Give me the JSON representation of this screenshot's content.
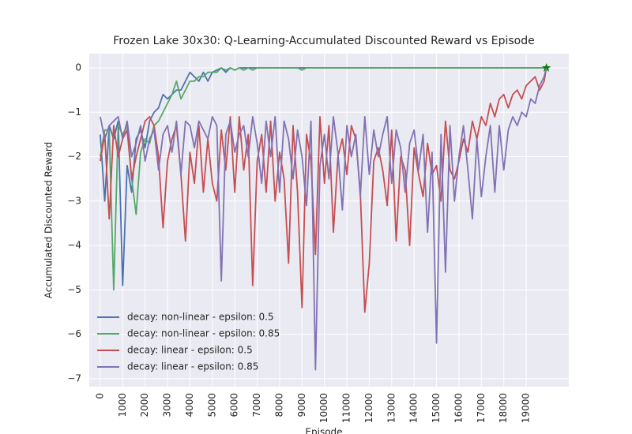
{
  "chart_data": {
    "type": "line",
    "title": "Frozen Lake 30x30: Q-Learning-Accumulated Discounted Reward vs Episode",
    "x_label": "Episode",
    "y_label": "Accumulated Discounted Reward",
    "x": [
      0,
      200,
      400,
      600,
      800,
      1000,
      1200,
      1400,
      1600,
      1800,
      2000,
      2200,
      2400,
      2600,
      2800,
      3000,
      3200,
      3400,
      3600,
      3800,
      4000,
      4200,
      4400,
      4600,
      4800,
      5000,
      5200,
      5400,
      5600,
      5800,
      6000,
      6200,
      6400,
      6600,
      6800,
      7000,
      7200,
      7400,
      7600,
      7800,
      8000,
      8200,
      8400,
      8600,
      8800,
      9000,
      9200,
      9400,
      9600,
      9800,
      10000,
      10200,
      10400,
      10600,
      10800,
      11000,
      11200,
      11400,
      11600,
      11800,
      12000,
      12200,
      12400,
      12600,
      12800,
      13000,
      13200,
      13400,
      13600,
      13800,
      14000,
      14200,
      14400,
      14600,
      14800,
      15000,
      15200,
      15400,
      15600,
      15800,
      16000,
      16200,
      16400,
      16600,
      16800,
      17000,
      17200,
      17400,
      17600,
      17800,
      18000,
      18200,
      18400,
      18600,
      18800,
      19000,
      19200,
      19400,
      19600,
      19800,
      19900
    ],
    "series": [
      {
        "name": "decay: non-linear - epsilon: 0.5",
        "color": "#4c72b0",
        "values": [
          -1.5,
          -3.0,
          -1.3,
          -1.6,
          -1.2,
          -4.9,
          -2.2,
          -2.8,
          -1.6,
          -1.4,
          -1.8,
          -1.2,
          -1.0,
          -0.9,
          -0.6,
          -0.7,
          -0.6,
          -0.5,
          -0.5,
          -0.3,
          -0.1,
          -0.2,
          -0.3,
          -0.1,
          -0.3,
          -0.1,
          -0.05,
          0,
          -0.1,
          0,
          -0.05,
          0,
          0,
          0,
          0,
          0,
          0,
          0,
          0,
          0,
          0,
          0,
          0,
          0,
          0,
          0,
          0,
          0,
          0,
          0,
          0,
          0,
          0,
          0,
          0,
          0,
          0,
          0,
          0,
          0,
          0,
          0,
          0,
          0,
          0,
          0,
          0,
          0,
          0,
          0,
          0,
          0,
          0,
          0,
          0,
          0,
          0,
          0,
          0,
          0,
          0,
          0,
          0,
          0,
          0,
          0,
          0,
          0,
          0,
          0,
          0,
          0,
          0,
          0,
          0,
          0,
          0,
          0,
          0,
          0,
          0
        ]
      },
      {
        "name": "decay: non-linear - epsilon: 0.85",
        "color": "#55a868",
        "end_marker": "star",
        "marker_color": "#008000",
        "values": [
          -2.0,
          -1.4,
          -1.4,
          -5.0,
          -1.3,
          -1.5,
          -1.3,
          -2.5,
          -3.3,
          -1.9,
          -1.6,
          -1.7,
          -1.3,
          -1.2,
          -1.0,
          -0.8,
          -0.6,
          -0.3,
          -0.7,
          -0.5,
          -0.3,
          -0.3,
          -0.2,
          -0.2,
          -0.1,
          -0.1,
          -0.1,
          0,
          -0.05,
          0,
          -0.05,
          0,
          -0.05,
          0,
          -0.05,
          0,
          0,
          0,
          0,
          0,
          0,
          0,
          0,
          0,
          0,
          -0.05,
          0,
          0,
          0,
          0,
          0,
          0,
          0,
          0,
          0,
          0,
          0,
          0,
          0,
          0,
          0,
          0,
          0,
          0,
          0,
          0,
          0,
          0,
          0,
          0,
          0,
          0,
          0,
          0,
          0,
          0,
          0,
          0,
          0,
          0,
          0,
          0,
          0,
          0,
          0,
          0,
          0,
          0,
          0,
          0,
          0,
          0,
          0,
          0,
          0,
          0,
          0,
          0,
          0,
          0,
          0
        ]
      },
      {
        "name": "decay: linear - epsilon: 0.5",
        "color": "#c44e52",
        "values": [
          -2.1,
          -1.5,
          -3.4,
          -1.3,
          -2.0,
          -1.6,
          -1.4,
          -2.5,
          -2.0,
          -1.6,
          -1.2,
          -1.1,
          -1.3,
          -2.0,
          -3.6,
          -2.1,
          -1.6,
          -1.3,
          -2.4,
          -3.9,
          -1.9,
          -2.6,
          -1.3,
          -2.8,
          -1.6,
          -2.6,
          -3.0,
          -1.4,
          -2.3,
          -1.1,
          -2.8,
          -1.1,
          -2.3,
          -1.5,
          -4.9,
          -2.1,
          -1.5,
          -2.8,
          -1.2,
          -3.0,
          -1.9,
          -2.5,
          -4.4,
          -1.3,
          -2.8,
          -5.4,
          -1.5,
          -2.1,
          -4.2,
          -1.1,
          -2.6,
          -1.3,
          -3.7,
          -2.0,
          -1.6,
          -2.4,
          -1.3,
          -1.6,
          -2.8,
          -5.5,
          -4.4,
          -2.1,
          -1.8,
          -2.3,
          -3.1,
          -1.4,
          -3.9,
          -2.0,
          -2.3,
          -4.0,
          -1.8,
          -2.4,
          -2.9,
          -1.7,
          -2.4,
          -2.2,
          -3.0,
          -1.2,
          -2.3,
          -2.5,
          -2.1,
          -1.6,
          -1.9,
          -1.2,
          -1.6,
          -1.1,
          -1.3,
          -0.8,
          -1.1,
          -0.7,
          -0.6,
          -0.9,
          -0.6,
          -0.5,
          -0.7,
          -0.4,
          -0.3,
          -0.2,
          -0.5,
          -0.3,
          0
        ]
      },
      {
        "name": "decay: linear - epsilon: 0.85",
        "color": "#8172b2",
        "values": [
          -1.1,
          -1.6,
          -1.3,
          -1.2,
          -1.1,
          -1.6,
          -1.2,
          -2.0,
          -1.7,
          -1.3,
          -2.1,
          -1.6,
          -1.4,
          -2.3,
          -1.5,
          -1.3,
          -1.9,
          -1.2,
          -2.4,
          -1.2,
          -1.3,
          -1.8,
          -1.2,
          -1.4,
          -1.6,
          -1.1,
          -1.3,
          -4.8,
          -1.5,
          -1.2,
          -1.9,
          -1.5,
          -1.3,
          -2.0,
          -1.1,
          -1.7,
          -2.6,
          -1.2,
          -2.0,
          -1.1,
          -2.8,
          -1.2,
          -1.6,
          -2.5,
          -1.4,
          -2.0,
          -3.1,
          -1.2,
          -6.8,
          -2.2,
          -1.5,
          -2.5,
          -1.1,
          -1.9,
          -3.2,
          -1.3,
          -2.0,
          -1.5,
          -2.9,
          -1.1,
          -2.4,
          -1.4,
          -2.0,
          -1.5,
          -1.1,
          -2.6,
          -1.4,
          -1.8,
          -2.8,
          -1.7,
          -1.4,
          -2.3,
          -1.5,
          -3.7,
          -1.9,
          -6.2,
          -1.5,
          -4.6,
          -1.3,
          -3.0,
          -2.0,
          -1.3,
          -2.3,
          -3.4,
          -1.6,
          -2.9,
          -2.0,
          -1.3,
          -2.8,
          -1.3,
          -2.3,
          -1.4,
          -1.1,
          -1.3,
          -1.0,
          -1.1,
          -0.7,
          -0.8,
          -0.4,
          -0.2,
          0
        ]
      }
    ],
    "xlim": [
      -490,
      20900
    ],
    "ylim": [
      -7.18,
      0.32
    ],
    "xticks": [
      0,
      1000,
      2000,
      3000,
      4000,
      5000,
      6000,
      7000,
      8000,
      9000,
      10000,
      11000,
      12000,
      13000,
      14000,
      15000,
      16000,
      17000,
      18000,
      19000
    ],
    "yticks": [
      0,
      {
        "value": -1,
        "label": "−1"
      },
      {
        "value": -2,
        "label": "−2"
      },
      {
        "value": -3,
        "label": "−3"
      },
      {
        "value": -4,
        "label": "−4"
      },
      {
        "value": -5,
        "label": "−5"
      },
      {
        "value": -6,
        "label": "−6"
      },
      {
        "value": -7,
        "label": "−7"
      }
    ],
    "grid": true,
    "legend": "lower left"
  }
}
